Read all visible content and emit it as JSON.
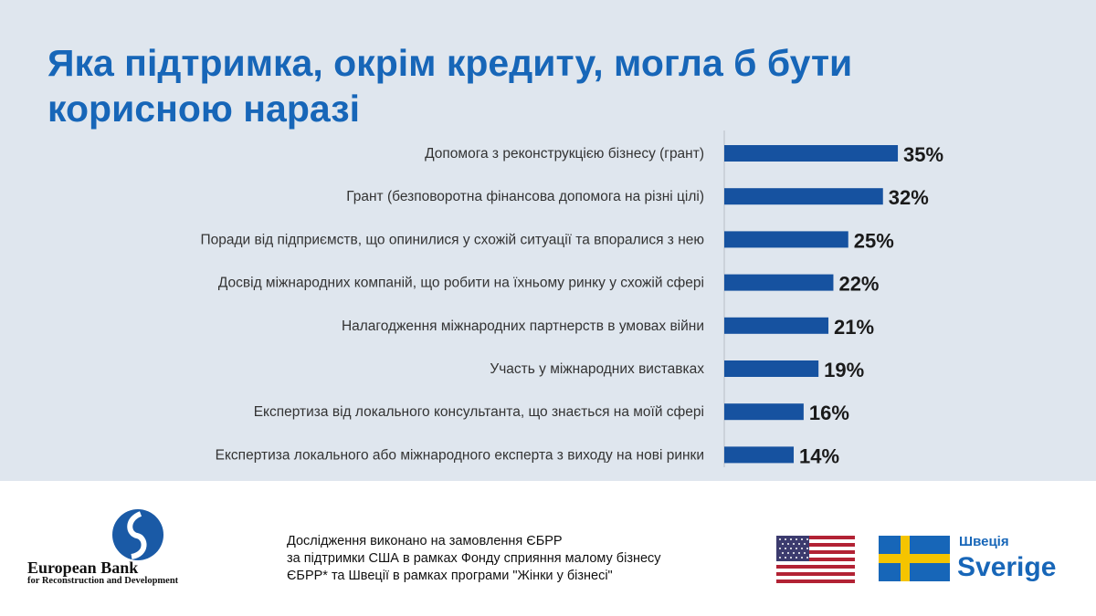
{
  "title": {
    "line1": "Яка підтримка, окрім кредиту, могла б бути",
    "line2": "корисною наразі"
  },
  "chart_data": {
    "type": "bar",
    "orientation": "horizontal",
    "categories": [
      "Допомога з реконструкцією бізнесу (грант)",
      "Грант (безповоротна фінансова допомога на різні цілі)",
      "Поради від підприємств, що опинилися у схожій ситуації та впоралися з нею",
      "Досвід міжнародних компаній, що робити на їхньому ринку у схожій сфері",
      "Налагодження міжнародних партнерств в умовах війни",
      "Участь у міжнародних виставках",
      "Експертиза від локального консультанта, що знається на моїй сфері",
      "Експертиза локального або міжнародного експерта з виходу на нові ринки"
    ],
    "values": [
      35,
      32,
      25,
      22,
      21,
      19,
      16,
      14
    ],
    "value_labels": [
      "35%",
      "32%",
      "25%",
      "22%",
      "21%",
      "19%",
      "16%",
      "14%"
    ],
    "unit": "%",
    "xlim": [
      0,
      100
    ],
    "bar_color": "#1652a0",
    "grid": false
  },
  "footer": {
    "logo": {
      "name": "European Bank",
      "sub": "for Reconstruction and Development"
    },
    "note_lines": [
      "Дослідження виконано на замовлення ЄБРР",
      "за підтримки США в рамках Фонду сприяння малому бізнесу",
      "ЄБРР* та Швеції в рамках програми \"Жінки у бізнесі\""
    ],
    "sweden": {
      "small": "Швеція",
      "big": "Sverige"
    }
  },
  "colors": {
    "title": "#1766b8",
    "background": "#dfe6ee",
    "bar": "#1652a0",
    "ebrd_blue": "#1a5aa6"
  }
}
